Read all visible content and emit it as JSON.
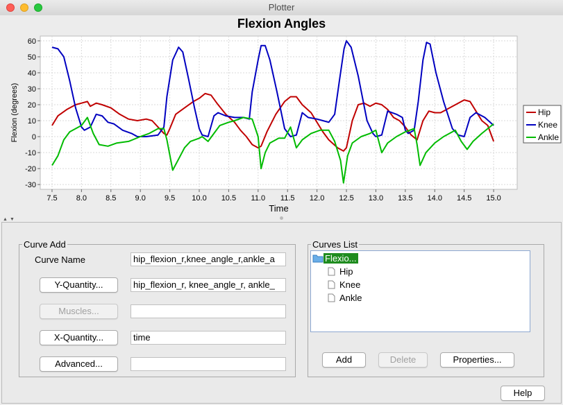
{
  "window": {
    "title": "Plotter"
  },
  "chart_data": {
    "type": "line",
    "title": "Flexion Angles",
    "xlabel": "Time",
    "ylabel": "Flexion (degrees)",
    "xlim": [
      7.3,
      15.4
    ],
    "ylim": [
      -33,
      63
    ],
    "xticks": [
      7.5,
      8.0,
      8.5,
      9.0,
      9.5,
      10.0,
      10.5,
      11.0,
      11.5,
      12.0,
      12.5,
      13.0,
      13.5,
      14.0,
      14.5,
      15.0
    ],
    "yticks": [
      -30,
      -20,
      -10,
      0,
      10,
      20,
      30,
      40,
      50,
      60
    ],
    "grid": true,
    "legend_position": "right",
    "series": [
      {
        "name": "Hip",
        "color": "#c00000",
        "points": [
          [
            7.5,
            7
          ],
          [
            7.6,
            13
          ],
          [
            7.75,
            17
          ],
          [
            7.9,
            20
          ],
          [
            8.0,
            21
          ],
          [
            8.1,
            22
          ],
          [
            8.15,
            19
          ],
          [
            8.25,
            21
          ],
          [
            8.35,
            20
          ],
          [
            8.5,
            18
          ],
          [
            8.65,
            14
          ],
          [
            8.8,
            11
          ],
          [
            8.95,
            10
          ],
          [
            9.1,
            11
          ],
          [
            9.2,
            10
          ],
          [
            9.3,
            6
          ],
          [
            9.4,
            2
          ],
          [
            9.45,
            1
          ],
          [
            9.5,
            5
          ],
          [
            9.6,
            14
          ],
          [
            9.75,
            18
          ],
          [
            9.9,
            22
          ],
          [
            10.0,
            24
          ],
          [
            10.1,
            27
          ],
          [
            10.2,
            26
          ],
          [
            10.3,
            21
          ],
          [
            10.45,
            14
          ],
          [
            10.6,
            9
          ],
          [
            10.7,
            4
          ],
          [
            10.8,
            0
          ],
          [
            10.9,
            -5
          ],
          [
            11.0,
            -7
          ],
          [
            11.05,
            -6
          ],
          [
            11.15,
            3
          ],
          [
            11.3,
            14
          ],
          [
            11.45,
            22
          ],
          [
            11.55,
            25
          ],
          [
            11.65,
            25
          ],
          [
            11.75,
            20
          ],
          [
            11.9,
            15
          ],
          [
            12.0,
            9
          ],
          [
            12.1,
            3
          ],
          [
            12.2,
            -2
          ],
          [
            12.35,
            -7
          ],
          [
            12.45,
            -9
          ],
          [
            12.5,
            -7
          ],
          [
            12.6,
            10
          ],
          [
            12.7,
            20
          ],
          [
            12.8,
            21
          ],
          [
            12.9,
            19
          ],
          [
            13.0,
            21
          ],
          [
            13.1,
            20
          ],
          [
            13.2,
            17
          ],
          [
            13.3,
            12
          ],
          [
            13.4,
            10
          ],
          [
            13.5,
            6
          ],
          [
            13.6,
            1
          ],
          [
            13.7,
            -2
          ],
          [
            13.8,
            10
          ],
          [
            13.9,
            16
          ],
          [
            14.0,
            15
          ],
          [
            14.1,
            15
          ],
          [
            14.25,
            18
          ],
          [
            14.4,
            21
          ],
          [
            14.5,
            23
          ],
          [
            14.6,
            22
          ],
          [
            14.7,
            16
          ],
          [
            14.8,
            10
          ],
          [
            14.9,
            7
          ],
          [
            15.0,
            -3
          ]
        ]
      },
      {
        "name": "Knee",
        "color": "#0000c0",
        "points": [
          [
            7.5,
            56
          ],
          [
            7.6,
            55
          ],
          [
            7.7,
            50
          ],
          [
            7.8,
            35
          ],
          [
            7.9,
            18
          ],
          [
            8.0,
            6
          ],
          [
            8.05,
            4
          ],
          [
            8.15,
            6
          ],
          [
            8.25,
            14
          ],
          [
            8.35,
            13
          ],
          [
            8.45,
            9
          ],
          [
            8.55,
            8
          ],
          [
            8.7,
            4
          ],
          [
            8.85,
            2
          ],
          [
            8.95,
            0
          ],
          [
            9.1,
            0
          ],
          [
            9.3,
            1
          ],
          [
            9.4,
            6
          ],
          [
            9.45,
            25
          ],
          [
            9.55,
            48
          ],
          [
            9.65,
            56
          ],
          [
            9.72,
            53
          ],
          [
            9.82,
            36
          ],
          [
            9.92,
            18
          ],
          [
            10.0,
            5
          ],
          [
            10.05,
            1
          ],
          [
            10.15,
            0
          ],
          [
            10.25,
            13
          ],
          [
            10.32,
            15
          ],
          [
            10.45,
            13
          ],
          [
            10.6,
            12
          ],
          [
            10.75,
            12
          ],
          [
            10.85,
            11
          ],
          [
            10.9,
            28
          ],
          [
            11.0,
            48
          ],
          [
            11.05,
            57
          ],
          [
            11.12,
            57
          ],
          [
            11.2,
            48
          ],
          [
            11.32,
            28
          ],
          [
            11.45,
            5
          ],
          [
            11.55,
            0
          ],
          [
            11.65,
            1
          ],
          [
            11.75,
            15
          ],
          [
            11.85,
            12
          ],
          [
            12.0,
            11
          ],
          [
            12.1,
            10
          ],
          [
            12.2,
            9
          ],
          [
            12.3,
            14
          ],
          [
            12.38,
            35
          ],
          [
            12.46,
            55
          ],
          [
            12.5,
            60
          ],
          [
            12.58,
            56
          ],
          [
            12.7,
            38
          ],
          [
            12.85,
            10
          ],
          [
            12.95,
            2
          ],
          [
            13.0,
            0
          ],
          [
            13.1,
            1
          ],
          [
            13.2,
            16
          ],
          [
            13.35,
            14
          ],
          [
            13.45,
            12
          ],
          [
            13.5,
            4
          ],
          [
            13.55,
            2
          ],
          [
            13.65,
            4
          ],
          [
            13.72,
            22
          ],
          [
            13.8,
            48
          ],
          [
            13.86,
            59
          ],
          [
            13.92,
            58
          ],
          [
            14.02,
            40
          ],
          [
            14.15,
            22
          ],
          [
            14.3,
            5
          ],
          [
            14.4,
            1
          ],
          [
            14.5,
            0
          ],
          [
            14.6,
            12
          ],
          [
            14.7,
            15
          ],
          [
            14.85,
            12
          ],
          [
            15.0,
            7
          ]
        ]
      },
      {
        "name": "Ankle",
        "color": "#00bb00",
        "points": [
          [
            7.5,
            -18
          ],
          [
            7.6,
            -12
          ],
          [
            7.7,
            -2
          ],
          [
            7.8,
            3
          ],
          [
            7.9,
            5
          ],
          [
            8.0,
            7
          ],
          [
            8.1,
            12
          ],
          [
            8.2,
            2
          ],
          [
            8.3,
            -5
          ],
          [
            8.45,
            -6
          ],
          [
            8.6,
            -4
          ],
          [
            8.8,
            -3
          ],
          [
            9.0,
            0
          ],
          [
            9.15,
            2
          ],
          [
            9.3,
            5
          ],
          [
            9.4,
            5
          ],
          [
            9.45,
            -2
          ],
          [
            9.55,
            -21
          ],
          [
            9.65,
            -14
          ],
          [
            9.75,
            -7
          ],
          [
            9.85,
            -3
          ],
          [
            10.0,
            -1
          ],
          [
            10.05,
            0
          ],
          [
            10.15,
            -3
          ],
          [
            10.25,
            2
          ],
          [
            10.35,
            7
          ],
          [
            10.5,
            9
          ],
          [
            10.6,
            10
          ],
          [
            10.75,
            12
          ],
          [
            10.9,
            11
          ],
          [
            11.0,
            0
          ],
          [
            11.05,
            -20
          ],
          [
            11.12,
            -10
          ],
          [
            11.2,
            -4
          ],
          [
            11.35,
            -1
          ],
          [
            11.45,
            -1
          ],
          [
            11.55,
            6
          ],
          [
            11.65,
            -7
          ],
          [
            11.75,
            -2
          ],
          [
            11.9,
            2
          ],
          [
            12.05,
            4
          ],
          [
            12.2,
            4
          ],
          [
            12.3,
            -3
          ],
          [
            12.4,
            -15
          ],
          [
            12.45,
            -29
          ],
          [
            12.52,
            -12
          ],
          [
            12.6,
            -4
          ],
          [
            12.75,
            0
          ],
          [
            12.9,
            2
          ],
          [
            13.0,
            4
          ],
          [
            13.1,
            -10
          ],
          [
            13.2,
            -4
          ],
          [
            13.35,
            0
          ],
          [
            13.5,
            3
          ],
          [
            13.65,
            5
          ],
          [
            13.7,
            -5
          ],
          [
            13.75,
            -18
          ],
          [
            13.85,
            -10
          ],
          [
            14.0,
            -4
          ],
          [
            14.15,
            0
          ],
          [
            14.25,
            2
          ],
          [
            14.35,
            4
          ],
          [
            14.45,
            -3
          ],
          [
            14.55,
            -8
          ],
          [
            14.65,
            -3
          ],
          [
            14.8,
            2
          ],
          [
            14.9,
            5
          ],
          [
            15.0,
            8
          ]
        ]
      }
    ]
  },
  "curve_add": {
    "legend": "Curve Add",
    "curve_name_label": "Curve Name",
    "curve_name_value": "hip_flexion_r,knee_angle_r,ankle_a",
    "y_quantity_label": "Y-Quantity...",
    "y_quantity_value": "hip_flexion_r, knee_angle_r, ankle_",
    "muscles_label": "Muscles...",
    "muscles_value": "",
    "x_quantity_label": "X-Quantity...",
    "x_quantity_value": "time",
    "advanced_label": "Advanced...",
    "advanced_value": ""
  },
  "curves_list": {
    "legend": "Curves List",
    "folder_label": "Flexio...",
    "items": [
      "Hip",
      "Knee",
      "Ankle"
    ],
    "add_label": "Add",
    "delete_label": "Delete",
    "properties_label": "Properties..."
  },
  "help_label": "Help"
}
